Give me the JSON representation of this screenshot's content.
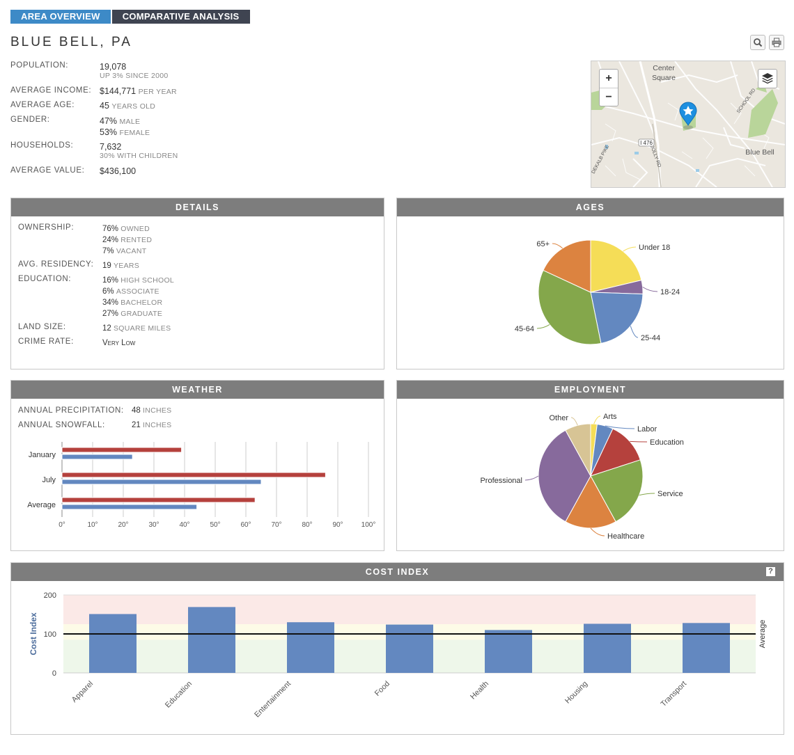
{
  "tabs": [
    {
      "label": "AREA OVERVIEW",
      "active": true
    },
    {
      "label": "COMPARATIVE ANALYSIS",
      "active": false
    }
  ],
  "location": {
    "title": "BLUE BELL, PA"
  },
  "tools": {
    "search_icon": "search-icon",
    "print_icon": "print-icon"
  },
  "stats": {
    "population": {
      "label": "POPULATION:",
      "value": "19,078",
      "sub": "UP 3% SINCE 2000"
    },
    "income": {
      "label": "AVERAGE INCOME:",
      "value": "$144,771",
      "unit": "PER YEAR"
    },
    "age": {
      "label": "AVERAGE AGE:",
      "value": "45",
      "unit": "YEARS OLD"
    },
    "gender": {
      "label": "GENDER:",
      "male_value": "47%",
      "male_unit": "MALE",
      "female_value": "53%",
      "female_unit": "FEMALE"
    },
    "households": {
      "label": "HOUSEHOLDS:",
      "value": "7,632",
      "sub": "30% WITH CHILDREN"
    },
    "home_value": {
      "label": "AVERAGE VALUE:",
      "value": "$436,100"
    }
  },
  "map": {
    "zoom_in": "+",
    "zoom_out": "−",
    "labels": {
      "center_square_1": "Center",
      "center_square_2": "Square",
      "blue_bell": "Blue Bell",
      "i476": "I 476",
      "jolly_rd": "JOLLY RD",
      "dekalb_pike": "DEKALB PIKE",
      "school_rd": "SCHOOL RD"
    }
  },
  "details": {
    "title": "DETAILS",
    "ownership": {
      "label": "OWNERSHIP:",
      "items": [
        {
          "value": "76%",
          "unit": "OWNED"
        },
        {
          "value": "24%",
          "unit": "RENTED"
        },
        {
          "value": "7%",
          "unit": "VACANT"
        }
      ]
    },
    "residency": {
      "label": "AVG. RESIDENCY:",
      "value": "19",
      "unit": "YEARS"
    },
    "education": {
      "label": "EDUCATION:",
      "items": [
        {
          "value": "16%",
          "unit": "HIGH SCHOOL"
        },
        {
          "value": "6%",
          "unit": "ASSOCIATE"
        },
        {
          "value": "34%",
          "unit": "BACHELOR"
        },
        {
          "value": "27%",
          "unit": "GRADUATE"
        }
      ]
    },
    "land": {
      "label": "LAND SIZE:",
      "value": "12",
      "unit": "SQUARE MILES"
    },
    "crime": {
      "label": "CRIME RATE:",
      "value": "Very Low"
    }
  },
  "weather": {
    "title": "WEATHER",
    "precip": {
      "label": "ANNUAL PRECIPITATION:",
      "value": "48",
      "unit": "INCHES"
    },
    "snow": {
      "label": "ANNUAL SNOWFALL:",
      "value": "21",
      "unit": "INCHES"
    }
  },
  "employment": {
    "title": "EMPLOYMENT"
  },
  "ages": {
    "title": "AGES"
  },
  "cost_index": {
    "title": "COST INDEX",
    "help": "?"
  },
  "colors": {
    "red": "#b5413d",
    "blue": "#6388c0",
    "yellow": "#f5dd57",
    "purple": "#876a9c",
    "green": "#84a74b",
    "orange": "#dc8340",
    "tan": "#d7c495",
    "band_high": "#fbe9e7",
    "band_mid": "#fdfbe7",
    "band_low": "#eef7ea"
  },
  "chart_data": [
    {
      "type": "pie",
      "title": "AGES",
      "categories": [
        "Under 18",
        "18-24",
        "25-44",
        "45-64",
        "65+"
      ],
      "values": [
        20,
        4,
        20,
        33,
        17
      ],
      "colors": [
        "#f5dd57",
        "#876a9c",
        "#6388c0",
        "#84a74b",
        "#dc8340"
      ]
    },
    {
      "type": "bar",
      "title": "WEATHER",
      "categories": [
        "January",
        "July",
        "Average"
      ],
      "series": [
        {
          "values": [
            39,
            86,
            63
          ],
          "color": "#b5413d"
        },
        {
          "values": [
            23,
            65,
            44
          ],
          "color": "#6388c0"
        }
      ],
      "xlim": [
        0,
        100
      ],
      "xticks": [
        "0°",
        "10°",
        "20°",
        "30°",
        "40°",
        "50°",
        "60°",
        "70°",
        "80°",
        "90°",
        "100°"
      ]
    },
    {
      "type": "pie",
      "title": "EMPLOYMENT",
      "categories": [
        "Arts",
        "Labor",
        "Education",
        "Service",
        "Healthcare",
        "Professional",
        "Other"
      ],
      "values": [
        2,
        5,
        13,
        22,
        16,
        34,
        8
      ],
      "colors": [
        "#f5dd57",
        "#6388c0",
        "#b5413d",
        "#84a74b",
        "#dc8340",
        "#876a9c",
        "#d7c495"
      ]
    },
    {
      "type": "bar",
      "title": "COST INDEX",
      "categories": [
        "Apparel",
        "Education",
        "Entertainment",
        "Food",
        "Health",
        "Housing",
        "Transport"
      ],
      "values": [
        151,
        169,
        130,
        124,
        110,
        126,
        128
      ],
      "ylim": [
        0,
        200
      ],
      "yticks": [
        "0",
        "100",
        "200"
      ],
      "ylabel": "Cost Index",
      "reference_line": {
        "value": 100,
        "label": "Average"
      },
      "color": "#6388c0"
    }
  ]
}
